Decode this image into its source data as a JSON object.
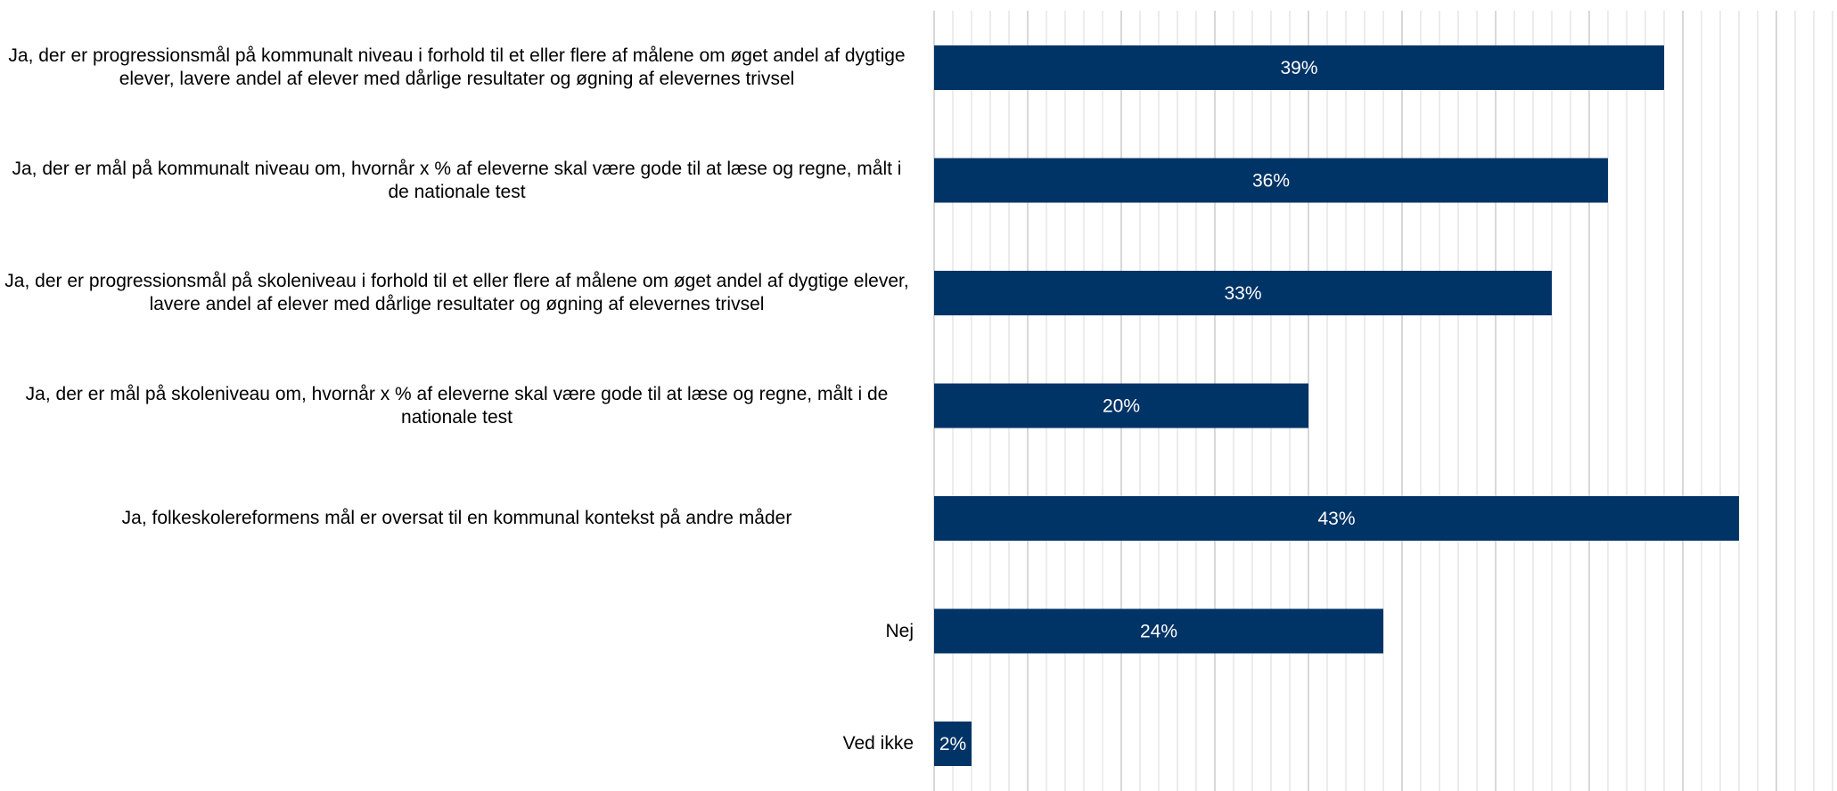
{
  "chart_data": {
    "type": "bar",
    "orientation": "horizontal",
    "categories": [
      "Ja, der er progressionsmål på kommunalt niveau i forhold til et eller flere af målene om øget andel af dygtige elever, lavere andel af elever med dårlige resultater og øgning af elevernes trivsel",
      "Ja, der er mål på kommunalt niveau om, hvornår x % af eleverne skal være gode til at læse og regne, målt i de nationale test",
      "Ja, der er progressionsmål på skoleniveau i forhold til et eller flere af målene om øget andel af dygtige elever, lavere andel af elever med dårlige resultater og øgning af elevernes trivsel",
      "Ja, der er mål på skoleniveau om, hvornår x % af eleverne skal være gode til at læse og regne, målt i de nationale test",
      "Ja, folkeskolereformens mål er oversat til en kommunal kontekst på andre måder",
      "Nej",
      "Ved ikke"
    ],
    "values": [
      39,
      36,
      33,
      20,
      43,
      24,
      2
    ],
    "value_labels": [
      "39%",
      "36%",
      "33%",
      "20%",
      "43%",
      "24%",
      "2%"
    ],
    "xlim": [
      0,
      48
    ],
    "grid": true,
    "bar_color": "#003366",
    "label_color": "#ffffff",
    "grid_color": "#d9d9d9"
  }
}
